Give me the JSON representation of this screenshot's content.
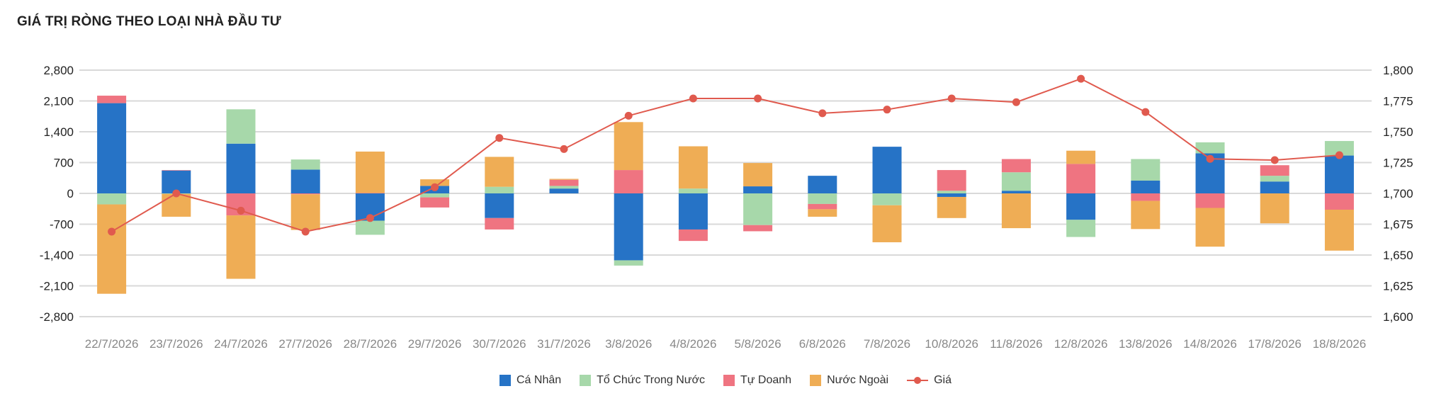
{
  "header": {
    "title": "GIÁ TRỊ RÒNG THEO LOẠI NHÀ ĐẦU TƯ"
  },
  "chart_data": {
    "type": "bar",
    "stacked": true,
    "categories": [
      "22/7/2026",
      "23/7/2026",
      "24/7/2026",
      "27/7/2026",
      "28/7/2026",
      "29/7/2026",
      "30/7/2026",
      "31/7/2026",
      "3/8/2026",
      "4/8/2026",
      "5/8/2026",
      "6/8/2026",
      "7/8/2026",
      "10/8/2026",
      "11/8/2026",
      "12/8/2026",
      "13/8/2026",
      "14/8/2026",
      "17/8/2026",
      "18/8/2026"
    ],
    "series": [
      {
        "name": "Cá Nhân",
        "color": "#2673c6",
        "values": [
          2050,
          520,
          1130,
          540,
          -620,
          170,
          -560,
          110,
          -1520,
          -820,
          160,
          400,
          1060,
          -80,
          60,
          -600,
          290,
          910,
          270,
          860
        ]
      },
      {
        "name": "Tổ Chức Trong Nước",
        "color": "#a7d8aa",
        "values": [
          -250,
          -10,
          780,
          230,
          -320,
          -90,
          150,
          60,
          -120,
          110,
          -720,
          -240,
          -270,
          60,
          420,
          -390,
          490,
          250,
          130,
          330
        ]
      },
      {
        "name": "Tự Doanh",
        "color": "#ef7481",
        "values": [
          170,
          10,
          -500,
          -20,
          10,
          -230,
          -260,
          140,
          530,
          -260,
          -140,
          -120,
          0,
          470,
          300,
          670,
          -170,
          -330,
          240,
          -370
        ]
      },
      {
        "name": "Nước Ngoài",
        "color": "#efad55",
        "values": [
          -2030,
          -520,
          -1440,
          -810,
          940,
          150,
          680,
          20,
          1090,
          960,
          530,
          -170,
          -840,
          -480,
          -790,
          300,
          -640,
          -880,
          -680,
          -930
        ]
      }
    ],
    "line": {
      "name": "Giá",
      "color": "#e05a4e",
      "axis": "right",
      "values": [
        1669,
        1700,
        1686,
        1669,
        1680,
        1705,
        1745,
        1736,
        1763,
        1777,
        1777,
        1765,
        1768,
        1777,
        1774,
        1793,
        1766,
        1728,
        1727,
        1731
      ]
    },
    "y_left": {
      "min": -2800,
      "max": 2800,
      "ticks": [
        2800,
        2100,
        1400,
        700,
        0,
        -700,
        -1400,
        -2100,
        -2800
      ],
      "tick_labels": [
        "2,800",
        "2,100",
        "1,400",
        "700",
        "0",
        "-700",
        "-1,400",
        "-2,100",
        "-2,800"
      ]
    },
    "y_right": {
      "min": 1600,
      "max": 1800,
      "ticks": [
        1800,
        1775,
        1750,
        1725,
        1700,
        1675,
        1650,
        1625,
        1600
      ],
      "tick_labels": [
        "1,800",
        "1,775",
        "1,750",
        "1,725",
        "1,700",
        "1,675",
        "1,650",
        "1,625",
        "1,600"
      ]
    },
    "grid": true,
    "legend_position": "bottom"
  },
  "legend": {
    "items": [
      {
        "label": "Cá Nhân",
        "color": "#2673c6"
      },
      {
        "label": "Tổ Chức Trong Nước",
        "color": "#a7d8aa"
      },
      {
        "label": "Tự Doanh",
        "color": "#ef7481"
      },
      {
        "label": "Nước Ngoài",
        "color": "#efad55"
      }
    ],
    "line_label": "Giá"
  }
}
